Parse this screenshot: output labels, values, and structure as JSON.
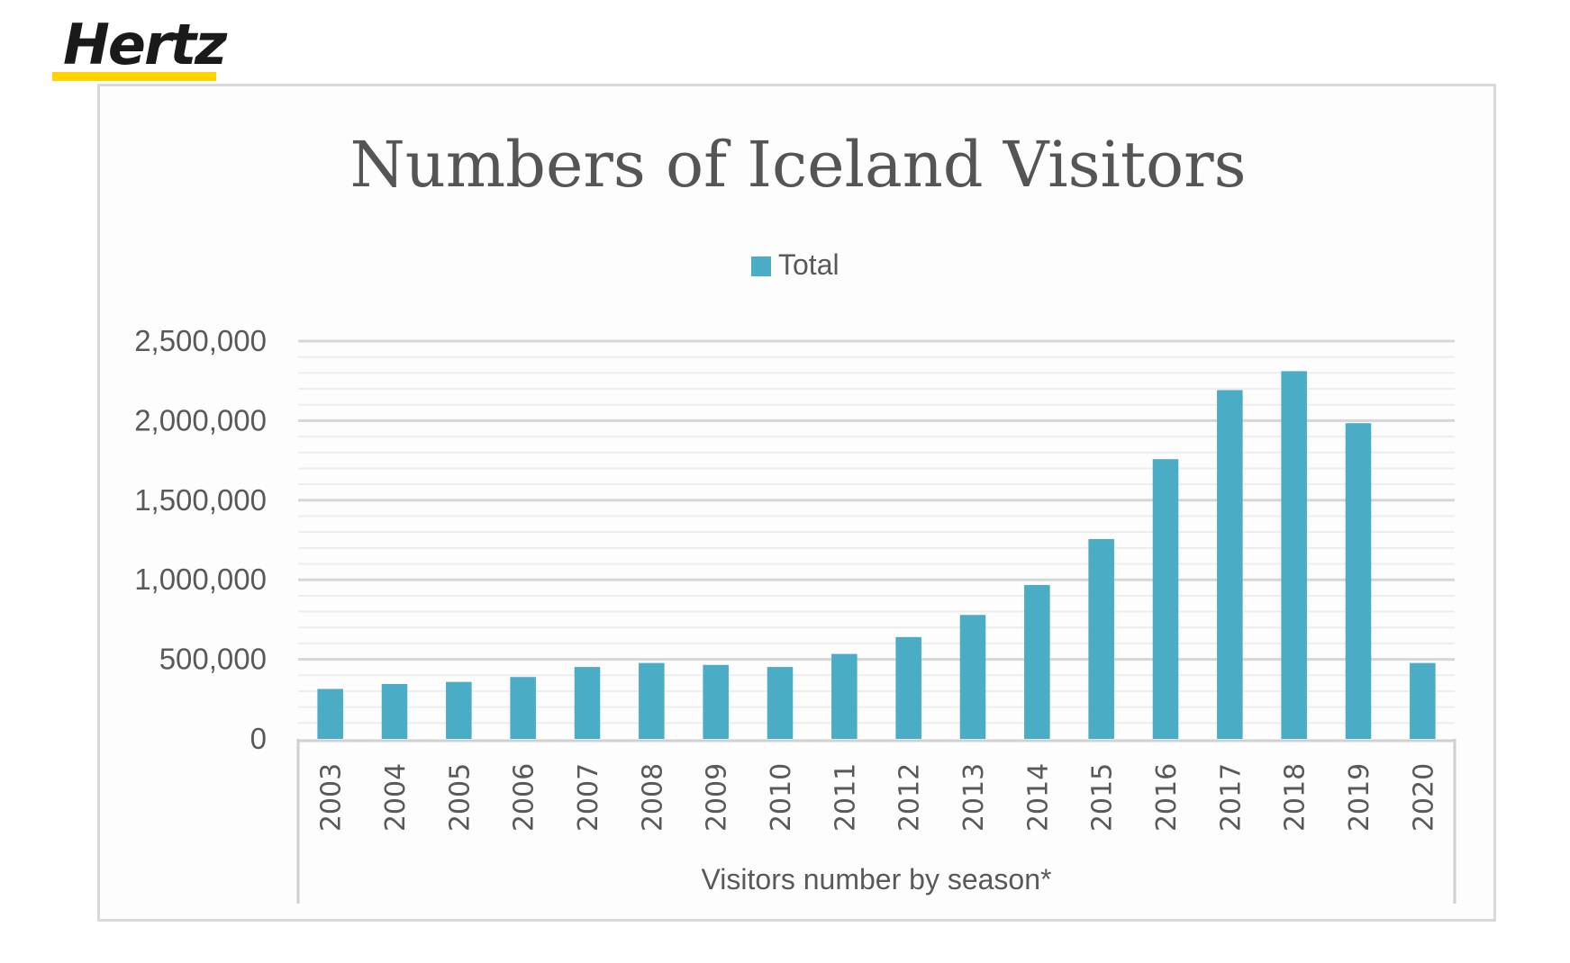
{
  "logo": {
    "text": "Hertz",
    "bar_color": "#ffd200"
  },
  "chart_data": {
    "type": "bar",
    "title": "Numbers of Iceland Visitors",
    "xlabel": "Visitors number by season*",
    "ylabel": "",
    "categories": [
      "2003",
      "2004",
      "2005",
      "2006",
      "2007",
      "2008",
      "2009",
      "2010",
      "2011",
      "2012",
      "2013",
      "2014",
      "2015",
      "2016",
      "2017",
      "2018",
      "2019",
      "2020"
    ],
    "series": [
      {
        "name": "Total",
        "color": "#4bacc6",
        "values": [
          314000,
          345000,
          358000,
          389000,
          452000,
          477000,
          465000,
          452000,
          534000,
          640000,
          779000,
          967000,
          1256000,
          1758000,
          2192000,
          2311000,
          1984000,
          477000
        ]
      }
    ],
    "ylim": [
      0,
      2500000
    ],
    "yticks": [
      0,
      500000,
      1000000,
      1500000,
      2000000,
      2500000
    ],
    "ytick_labels": [
      "0",
      "500,000",
      "1,000,000",
      "1,500,000",
      "2,000,000",
      "2,500,000"
    ],
    "minor_grid_step": 100000,
    "grid": true,
    "legend_position": "top"
  }
}
